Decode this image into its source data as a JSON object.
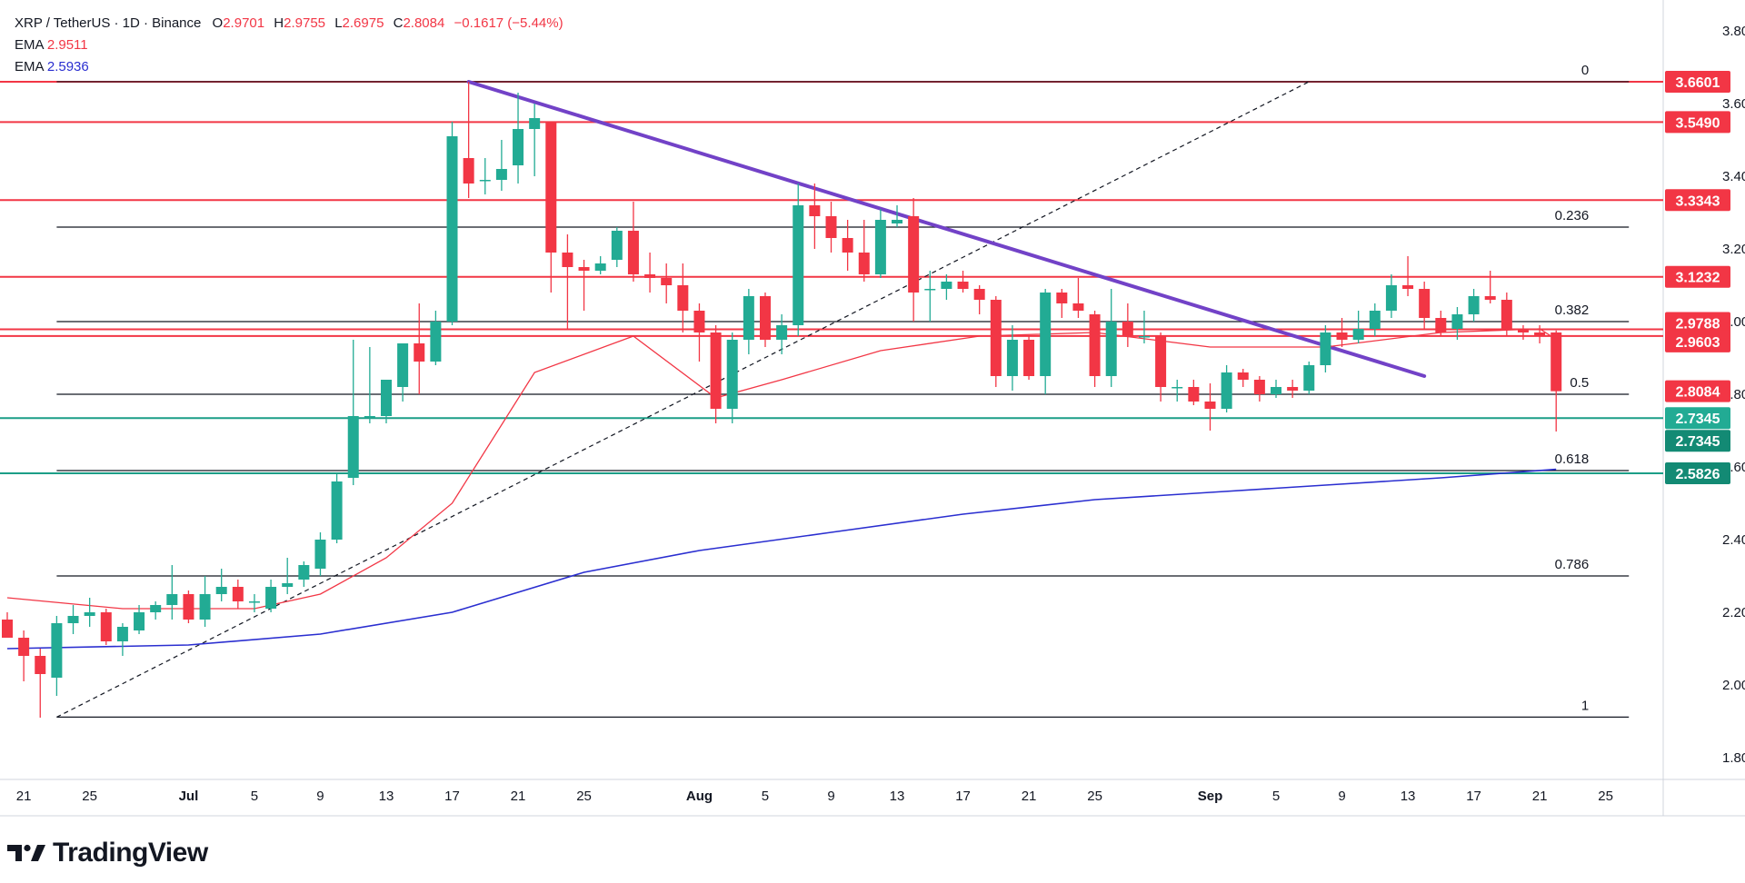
{
  "header": {
    "pair": "XRP / TetherUS · 1D · Binance",
    "o_label": "O",
    "o_value": "2.9701",
    "h_label": "H",
    "h_value": "2.9755",
    "l_label": "L",
    "l_value": "2.6975",
    "c_label": "C",
    "c_value": "2.8084",
    "change": "−0.1617 (−5.44%)"
  },
  "indicators": [
    {
      "label": "EMA",
      "value": "2.9511",
      "color": "#f23645"
    },
    {
      "label": "EMA",
      "value": "2.5936",
      "color": "#2a2ed0"
    }
  ],
  "brand": {
    "name": "TradingView",
    "icon": "tradingview-logo-icon"
  },
  "colors": {
    "up": "#22ab94",
    "down": "#f23645",
    "resistance": "#f23645",
    "support": "#1c9e87",
    "trendline": "#7242c7",
    "ema_fast": "#f23645",
    "ema_slow": "#2a2ed0",
    "fib": "#131722"
  },
  "chart_data": {
    "type": "candlestick",
    "y_axis": {
      "ticks": [
        "3.8000",
        "3.6000",
        "3.4000",
        "3.2000",
        "3.0000",
        "2.8000",
        "2.6000",
        "2.4000",
        "2.2000",
        "2.0000",
        "1.8000"
      ],
      "range": [
        1.74,
        3.95
      ]
    },
    "x_axis": {
      "labels": [
        "21",
        "25",
        "Jul",
        "5",
        "9",
        "13",
        "17",
        "21",
        "25",
        "Aug",
        "5",
        "9",
        "13",
        "17",
        "21",
        "25",
        "Sep",
        "5",
        "9",
        "13",
        "17",
        "21",
        "25"
      ],
      "label_dates": [
        "2025-06-21",
        "2025-06-25",
        "2025-07-01",
        "2025-07-05",
        "2025-07-09",
        "2025-07-13",
        "2025-07-17",
        "2025-07-21",
        "2025-07-25",
        "2025-08-01",
        "2025-08-05",
        "2025-08-09",
        "2025-08-13",
        "2025-08-17",
        "2025-08-21",
        "2025-08-25",
        "2025-09-01",
        "2025-09-05",
        "2025-09-09",
        "2025-09-13",
        "2025-09-17",
        "2025-09-21",
        "2025-09-25"
      ]
    },
    "candles": [
      {
        "date": "2025-06-20",
        "o": 2.18,
        "h": 2.2,
        "l": 2.13,
        "c": 2.13
      },
      {
        "date": "2025-06-21",
        "o": 2.13,
        "h": 2.15,
        "l": 2.01,
        "c": 2.08
      },
      {
        "date": "2025-06-22",
        "o": 2.08,
        "h": 2.1,
        "l": 1.91,
        "c": 2.03
      },
      {
        "date": "2025-06-23",
        "o": 2.02,
        "h": 2.19,
        "l": 1.97,
        "c": 2.17
      },
      {
        "date": "2025-06-24",
        "o": 2.17,
        "h": 2.22,
        "l": 2.14,
        "c": 2.19
      },
      {
        "date": "2025-06-25",
        "o": 2.19,
        "h": 2.24,
        "l": 2.16,
        "c": 2.2
      },
      {
        "date": "2025-06-26",
        "o": 2.2,
        "h": 2.21,
        "l": 2.11,
        "c": 2.12
      },
      {
        "date": "2025-06-27",
        "o": 2.12,
        "h": 2.17,
        "l": 2.08,
        "c": 2.16
      },
      {
        "date": "2025-06-28",
        "o": 2.15,
        "h": 2.22,
        "l": 2.14,
        "c": 2.2
      },
      {
        "date": "2025-06-29",
        "o": 2.2,
        "h": 2.23,
        "l": 2.18,
        "c": 2.22
      },
      {
        "date": "2025-06-30",
        "o": 2.22,
        "h": 2.33,
        "l": 2.18,
        "c": 2.25
      },
      {
        "date": "2025-07-01",
        "o": 2.25,
        "h": 2.26,
        "l": 2.17,
        "c": 2.18
      },
      {
        "date": "2025-07-02",
        "o": 2.18,
        "h": 2.3,
        "l": 2.16,
        "c": 2.25
      },
      {
        "date": "2025-07-03",
        "o": 2.25,
        "h": 2.32,
        "l": 2.23,
        "c": 2.27
      },
      {
        "date": "2025-07-04",
        "o": 2.27,
        "h": 2.29,
        "l": 2.21,
        "c": 2.23
      },
      {
        "date": "2025-07-05",
        "o": 2.23,
        "h": 2.25,
        "l": 2.2,
        "c": 2.23
      },
      {
        "date": "2025-07-06",
        "o": 2.21,
        "h": 2.29,
        "l": 2.2,
        "c": 2.27
      },
      {
        "date": "2025-07-07",
        "o": 2.27,
        "h": 2.35,
        "l": 2.25,
        "c": 2.28
      },
      {
        "date": "2025-07-08",
        "o": 2.29,
        "h": 2.34,
        "l": 2.27,
        "c": 2.33
      },
      {
        "date": "2025-07-09",
        "o": 2.32,
        "h": 2.42,
        "l": 2.3,
        "c": 2.4
      },
      {
        "date": "2025-07-10",
        "o": 2.4,
        "h": 2.58,
        "l": 2.39,
        "c": 2.56
      },
      {
        "date": "2025-07-11",
        "o": 2.57,
        "h": 2.95,
        "l": 2.55,
        "c": 2.74
      },
      {
        "date": "2025-07-12",
        "o": 2.74,
        "h": 2.93,
        "l": 2.72,
        "c": 2.74
      },
      {
        "date": "2025-07-13",
        "o": 2.74,
        "h": 2.82,
        "l": 2.72,
        "c": 2.84
      },
      {
        "date": "2025-07-14",
        "o": 2.82,
        "h": 2.94,
        "l": 2.78,
        "c": 2.94
      },
      {
        "date": "2025-07-15",
        "o": 2.94,
        "h": 3.05,
        "l": 2.8,
        "c": 2.89
      },
      {
        "date": "2025-07-16",
        "o": 2.89,
        "h": 3.03,
        "l": 2.88,
        "c": 3.0
      },
      {
        "date": "2025-07-17",
        "o": 3.0,
        "h": 3.55,
        "l": 2.99,
        "c": 3.51
      },
      {
        "date": "2025-07-18",
        "o": 3.45,
        "h": 3.66,
        "l": 3.34,
        "c": 3.38
      },
      {
        "date": "2025-07-19",
        "o": 3.39,
        "h": 3.45,
        "l": 3.35,
        "c": 3.39
      },
      {
        "date": "2025-07-20",
        "o": 3.39,
        "h": 3.5,
        "l": 3.36,
        "c": 3.42
      },
      {
        "date": "2025-07-21",
        "o": 3.43,
        "h": 3.63,
        "l": 3.38,
        "c": 3.53
      },
      {
        "date": "2025-07-22",
        "o": 3.53,
        "h": 3.6,
        "l": 3.4,
        "c": 3.56
      },
      {
        "date": "2025-07-23",
        "o": 3.55,
        "h": 3.55,
        "l": 3.08,
        "c": 3.19
      },
      {
        "date": "2025-07-24",
        "o": 3.19,
        "h": 3.24,
        "l": 2.98,
        "c": 3.15
      },
      {
        "date": "2025-07-25",
        "o": 3.15,
        "h": 3.17,
        "l": 3.03,
        "c": 3.14
      },
      {
        "date": "2025-07-26",
        "o": 3.14,
        "h": 3.18,
        "l": 3.13,
        "c": 3.16
      },
      {
        "date": "2025-07-27",
        "o": 3.17,
        "h": 3.26,
        "l": 3.15,
        "c": 3.25
      },
      {
        "date": "2025-07-28",
        "o": 3.25,
        "h": 3.33,
        "l": 3.11,
        "c": 3.13
      },
      {
        "date": "2025-07-29",
        "o": 3.13,
        "h": 3.19,
        "l": 3.08,
        "c": 3.12
      },
      {
        "date": "2025-07-30",
        "o": 3.12,
        "h": 3.16,
        "l": 3.05,
        "c": 3.1
      },
      {
        "date": "2025-07-31",
        "o": 3.1,
        "h": 3.16,
        "l": 2.97,
        "c": 3.03
      },
      {
        "date": "2025-08-01",
        "o": 3.03,
        "h": 3.05,
        "l": 2.89,
        "c": 2.97
      },
      {
        "date": "2025-08-02",
        "o": 2.97,
        "h": 2.99,
        "l": 2.72,
        "c": 2.76
      },
      {
        "date": "2025-08-03",
        "o": 2.76,
        "h": 2.97,
        "l": 2.72,
        "c": 2.95
      },
      {
        "date": "2025-08-04",
        "o": 2.95,
        "h": 3.09,
        "l": 2.91,
        "c": 3.07
      },
      {
        "date": "2025-08-05",
        "o": 3.07,
        "h": 3.08,
        "l": 2.93,
        "c": 2.95
      },
      {
        "date": "2025-08-06",
        "o": 2.95,
        "h": 3.02,
        "l": 2.91,
        "c": 2.99
      },
      {
        "date": "2025-08-07",
        "o": 2.99,
        "h": 3.38,
        "l": 2.96,
        "c": 3.32
      },
      {
        "date": "2025-08-08",
        "o": 3.32,
        "h": 3.38,
        "l": 3.2,
        "c": 3.29
      },
      {
        "date": "2025-08-09",
        "o": 3.29,
        "h": 3.33,
        "l": 3.19,
        "c": 3.23
      },
      {
        "date": "2025-08-10",
        "o": 3.23,
        "h": 3.28,
        "l": 3.14,
        "c": 3.19
      },
      {
        "date": "2025-08-11",
        "o": 3.19,
        "h": 3.28,
        "l": 3.11,
        "c": 3.13
      },
      {
        "date": "2025-08-12",
        "o": 3.13,
        "h": 3.31,
        "l": 3.12,
        "c": 3.28
      },
      {
        "date": "2025-08-13",
        "o": 3.27,
        "h": 3.32,
        "l": 3.26,
        "c": 3.28
      },
      {
        "date": "2025-08-14",
        "o": 3.29,
        "h": 3.34,
        "l": 3.0,
        "c": 3.08
      },
      {
        "date": "2025-08-15",
        "o": 3.09,
        "h": 3.14,
        "l": 3.0,
        "c": 3.09
      },
      {
        "date": "2025-08-16",
        "o": 3.09,
        "h": 3.13,
        "l": 3.06,
        "c": 3.11
      },
      {
        "date": "2025-08-17",
        "o": 3.11,
        "h": 3.14,
        "l": 3.08,
        "c": 3.09
      },
      {
        "date": "2025-08-18",
        "o": 3.09,
        "h": 3.1,
        "l": 3.02,
        "c": 3.06
      },
      {
        "date": "2025-08-19",
        "o": 3.06,
        "h": 3.07,
        "l": 2.82,
        "c": 2.85
      },
      {
        "date": "2025-08-20",
        "o": 2.85,
        "h": 2.99,
        "l": 2.81,
        "c": 2.95
      },
      {
        "date": "2025-08-21",
        "o": 2.95,
        "h": 2.96,
        "l": 2.84,
        "c": 2.85
      },
      {
        "date": "2025-08-22",
        "o": 2.85,
        "h": 3.09,
        "l": 2.8,
        "c": 3.08
      },
      {
        "date": "2025-08-23",
        "o": 3.08,
        "h": 3.09,
        "l": 3.01,
        "c": 3.05
      },
      {
        "date": "2025-08-24",
        "o": 3.05,
        "h": 3.12,
        "l": 3.01,
        "c": 3.03
      },
      {
        "date": "2025-08-25",
        "o": 3.02,
        "h": 3.03,
        "l": 2.82,
        "c": 2.85
      },
      {
        "date": "2025-08-26",
        "o": 2.85,
        "h": 3.09,
        "l": 2.82,
        "c": 3.0
      },
      {
        "date": "2025-08-27",
        "o": 3.0,
        "h": 3.05,
        "l": 2.93,
        "c": 2.96
      },
      {
        "date": "2025-08-28",
        "o": 2.96,
        "h": 3.03,
        "l": 2.94,
        "c": 2.96
      },
      {
        "date": "2025-08-29",
        "o": 2.96,
        "h": 2.97,
        "l": 2.78,
        "c": 2.82
      },
      {
        "date": "2025-08-30",
        "o": 2.82,
        "h": 2.84,
        "l": 2.78,
        "c": 2.82
      },
      {
        "date": "2025-08-31",
        "o": 2.82,
        "h": 2.84,
        "l": 2.77,
        "c": 2.78
      },
      {
        "date": "2025-09-01",
        "o": 2.78,
        "h": 2.83,
        "l": 2.7,
        "c": 2.76
      },
      {
        "date": "2025-09-02",
        "o": 2.76,
        "h": 2.88,
        "l": 2.75,
        "c": 2.86
      },
      {
        "date": "2025-09-03",
        "o": 2.86,
        "h": 2.87,
        "l": 2.82,
        "c": 2.84
      },
      {
        "date": "2025-09-04",
        "o": 2.84,
        "h": 2.85,
        "l": 2.78,
        "c": 2.8
      },
      {
        "date": "2025-09-05",
        "o": 2.8,
        "h": 2.84,
        "l": 2.79,
        "c": 2.82
      },
      {
        "date": "2025-09-06",
        "o": 2.82,
        "h": 2.84,
        "l": 2.79,
        "c": 2.81
      },
      {
        "date": "2025-09-07",
        "o": 2.81,
        "h": 2.89,
        "l": 2.8,
        "c": 2.88
      },
      {
        "date": "2025-09-08",
        "o": 2.88,
        "h": 2.99,
        "l": 2.86,
        "c": 2.97
      },
      {
        "date": "2025-09-09",
        "o": 2.97,
        "h": 3.01,
        "l": 2.93,
        "c": 2.95
      },
      {
        "date": "2025-09-10",
        "o": 2.95,
        "h": 3.03,
        "l": 2.94,
        "c": 2.98
      },
      {
        "date": "2025-09-11",
        "o": 2.98,
        "h": 3.05,
        "l": 2.96,
        "c": 3.03
      },
      {
        "date": "2025-09-12",
        "o": 3.03,
        "h": 3.13,
        "l": 3.01,
        "c": 3.1
      },
      {
        "date": "2025-09-13",
        "o": 3.1,
        "h": 3.18,
        "l": 3.07,
        "c": 3.09
      },
      {
        "date": "2025-09-14",
        "o": 3.09,
        "h": 3.11,
        "l": 2.98,
        "c": 3.01
      },
      {
        "date": "2025-09-15",
        "o": 3.01,
        "h": 3.03,
        "l": 2.96,
        "c": 2.97
      },
      {
        "date": "2025-09-16",
        "o": 2.98,
        "h": 3.04,
        "l": 2.95,
        "c": 3.02
      },
      {
        "date": "2025-09-17",
        "o": 3.02,
        "h": 3.09,
        "l": 3.0,
        "c": 3.07
      },
      {
        "date": "2025-09-18",
        "o": 3.07,
        "h": 3.14,
        "l": 3.05,
        "c": 3.06
      },
      {
        "date": "2025-09-19",
        "o": 3.06,
        "h": 3.08,
        "l": 2.96,
        "c": 2.98
      },
      {
        "date": "2025-09-20",
        "o": 2.98,
        "h": 2.99,
        "l": 2.95,
        "c": 2.97
      },
      {
        "date": "2025-09-21",
        "o": 2.97,
        "h": 2.99,
        "l": 2.94,
        "c": 2.96
      },
      {
        "date": "2025-09-22",
        "o": 2.9701,
        "h": 2.9755,
        "l": 2.6975,
        "c": 2.8084
      }
    ],
    "ema_fast": [
      {
        "date": "2025-06-20",
        "v": 2.24
      },
      {
        "date": "2025-06-27",
        "v": 2.21
      },
      {
        "date": "2025-07-05",
        "v": 2.21
      },
      {
        "date": "2025-07-09",
        "v": 2.25
      },
      {
        "date": "2025-07-13",
        "v": 2.35
      },
      {
        "date": "2025-07-17",
        "v": 2.5
      },
      {
        "date": "2025-07-22",
        "v": 2.86
      },
      {
        "date": "2025-07-28",
        "v": 2.96
      },
      {
        "date": "2025-08-02",
        "v": 2.79
      },
      {
        "date": "2025-08-06",
        "v": 2.84
      },
      {
        "date": "2025-08-12",
        "v": 2.92
      },
      {
        "date": "2025-08-18",
        "v": 2.96
      },
      {
        "date": "2025-08-25",
        "v": 2.97
      },
      {
        "date": "2025-09-01",
        "v": 2.93
      },
      {
        "date": "2025-09-08",
        "v": 2.93
      },
      {
        "date": "2025-09-15",
        "v": 2.97
      },
      {
        "date": "2025-09-21",
        "v": 2.98
      },
      {
        "date": "2025-09-22",
        "v": 2.9511
      }
    ],
    "ema_slow": [
      {
        "date": "2025-06-20",
        "v": 2.1
      },
      {
        "date": "2025-07-01",
        "v": 2.11
      },
      {
        "date": "2025-07-09",
        "v": 2.14
      },
      {
        "date": "2025-07-17",
        "v": 2.2
      },
      {
        "date": "2025-07-25",
        "v": 2.31
      },
      {
        "date": "2025-08-01",
        "v": 2.37
      },
      {
        "date": "2025-08-09",
        "v": 2.42
      },
      {
        "date": "2025-08-17",
        "v": 2.47
      },
      {
        "date": "2025-08-25",
        "v": 2.51
      },
      {
        "date": "2025-09-01",
        "v": 2.53
      },
      {
        "date": "2025-09-08",
        "v": 2.55
      },
      {
        "date": "2025-09-15",
        "v": 2.57
      },
      {
        "date": "2025-09-22",
        "v": 2.5936
      }
    ],
    "horizontal_levels": [
      {
        "value": 3.6601,
        "label": "3.6601",
        "kind": "resistance"
      },
      {
        "value": 3.549,
        "label": "3.5490",
        "kind": "resistance"
      },
      {
        "value": 3.3343,
        "label": "3.3343",
        "kind": "resistance"
      },
      {
        "value": 3.1232,
        "label": "3.1232",
        "kind": "resistance"
      },
      {
        "value": 2.9788,
        "label": "2.9788",
        "kind": "resistance"
      },
      {
        "value": 2.9603,
        "label": "2.9603",
        "kind": "resistance"
      },
      {
        "value": 2.7345,
        "label": "2.7345",
        "kind": "support"
      },
      {
        "value": 2.5826,
        "label": "2.5826",
        "kind": "support"
      }
    ],
    "price_tags": [
      {
        "value": 2.8084,
        "label": "2.8084",
        "kind": "last-price"
      },
      {
        "value": 2.7345,
        "label": "2.7345",
        "kind": "support-alt"
      }
    ],
    "fibonacci": {
      "start_date": "2025-06-23",
      "end_date": "2025-09-22",
      "levels": [
        {
          "ratio": "0",
          "value": 3.6601
        },
        {
          "ratio": "0.236",
          "value": 3.26
        },
        {
          "ratio": "0.382",
          "value": 3.0
        },
        {
          "ratio": "0.5",
          "value": 2.8
        },
        {
          "ratio": "0.618",
          "value": 2.59
        },
        {
          "ratio": "0.786",
          "value": 2.3
        },
        {
          "ratio": "1",
          "value": 1.9115
        }
      ]
    },
    "trendline": {
      "from": {
        "date": "2025-07-18",
        "v": 3.66
      },
      "to": {
        "date": "2025-09-14",
        "v": 2.85
      }
    },
    "dashed_line": {
      "from": {
        "date": "2025-06-23",
        "v": 1.9115
      },
      "to": {
        "date": "2025-09-07",
        "v": 3.6601
      }
    }
  }
}
